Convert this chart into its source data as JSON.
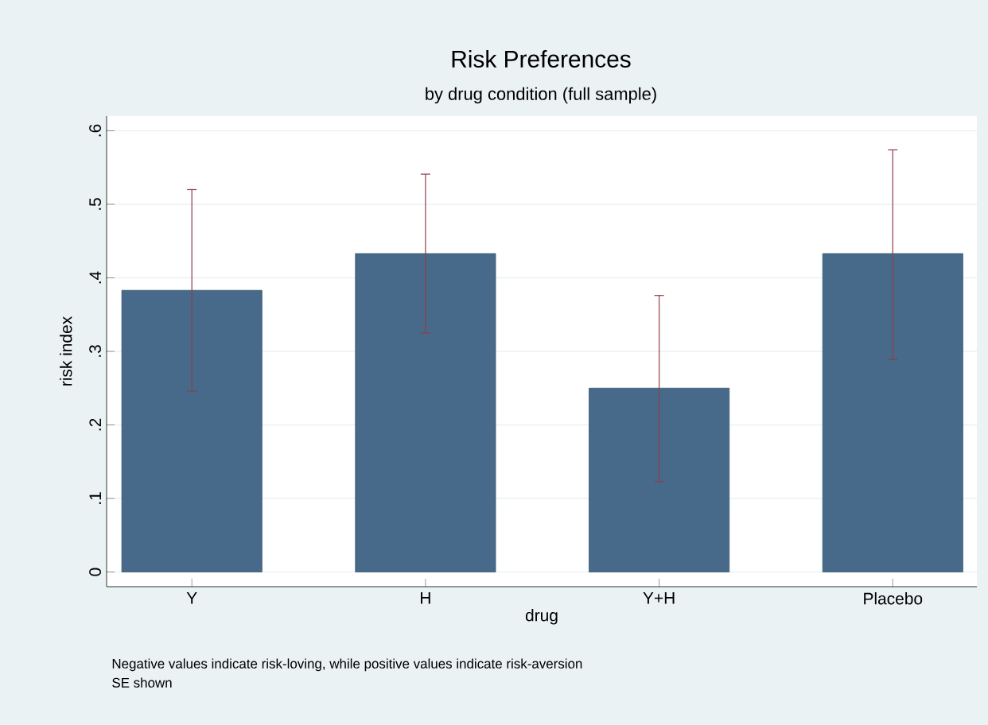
{
  "chart_data": {
    "type": "bar",
    "title": "Risk Preferences",
    "subtitle": "by drug condition (full sample)",
    "xlabel": "drug",
    "ylabel": "risk index",
    "categories": [
      "Y",
      "H",
      "Y+H",
      "Placebo"
    ],
    "values": [
      0.383,
      0.433,
      0.25,
      0.433
    ],
    "errors": [
      [
        0.246,
        0.52
      ],
      [
        0.325,
        0.541
      ],
      [
        0.123,
        0.376
      ],
      [
        0.289,
        0.574
      ]
    ],
    "color": "#476a8a",
    "ylim": [
      -0.02,
      0.62
    ],
    "yticks": [
      {
        "value": 0,
        "label": "0"
      },
      {
        "value": 0.1,
        "label": ".1"
      },
      {
        "value": 0.2,
        "label": ".2"
      },
      {
        "value": 0.3,
        "label": ".3"
      },
      {
        "value": 0.4,
        "label": ".4"
      },
      {
        "value": 0.5,
        "label": ".5"
      },
      {
        "value": 0.6,
        "label": ".6"
      }
    ],
    "grid": "y",
    "annotations": [
      "Negative values indicate risk-loving, while positive values indicate risk-aversion",
      "SE shown"
    ]
  }
}
